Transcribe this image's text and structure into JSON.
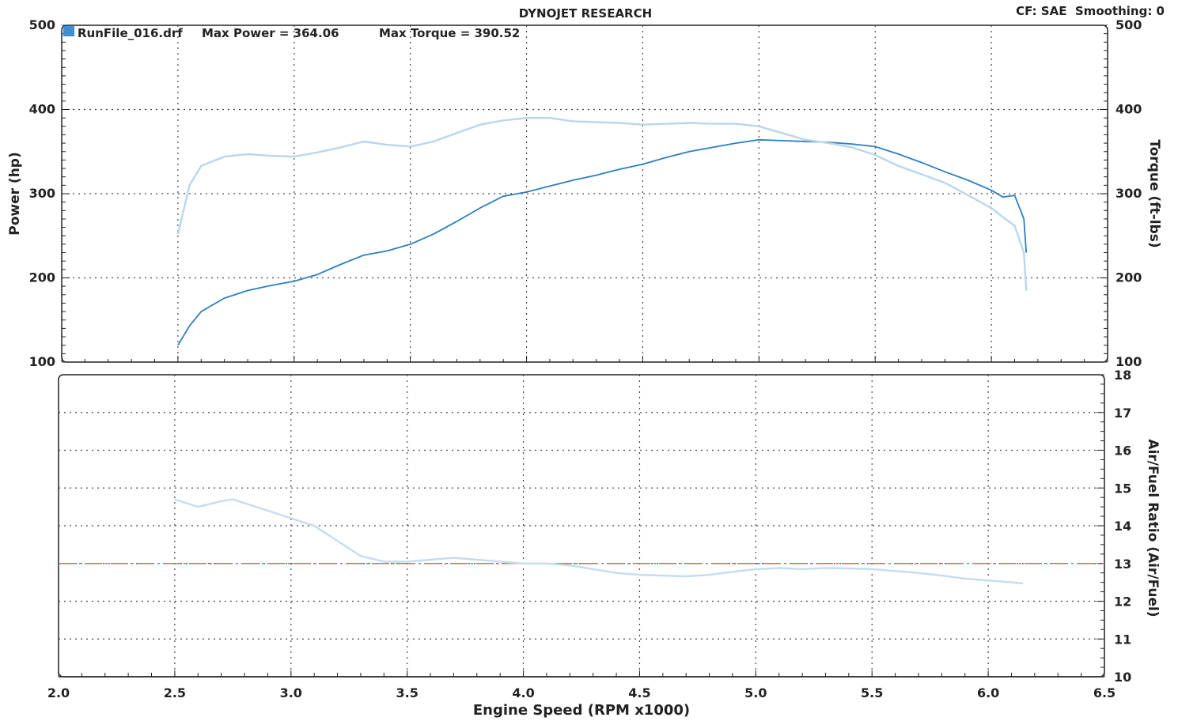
{
  "header": {
    "title": "DYNOJET RESEARCH",
    "cf_info": "CF: SAE  Smoothing: 0"
  },
  "colors": {
    "power": "#2e7fc0",
    "torque": "#b9d6ee",
    "afr": "#c4dcf0",
    "afr_target": "#e06060",
    "legend_box": "#3b8fd6",
    "grid": "#444444",
    "frame": "#222222"
  },
  "chart_data": [
    {
      "type": "line",
      "panel": "power-torque",
      "legend": {
        "file": "RunFile_016.drf",
        "max_power_label": "Max Power = 364.06",
        "max_torque_label": "Max Torque = 390.52"
      },
      "xlabel": "Engine Speed (RPM x1000)",
      "xlim": [
        2.0,
        6.5
      ],
      "xticks": [
        "2.0",
        "2.5",
        "3.0",
        "3.5",
        "4.0",
        "4.5",
        "5.0",
        "5.5",
        "6.0",
        "6.5"
      ],
      "ylabel": "Power (hp)",
      "ylim": [
        100,
        500
      ],
      "yticks": [
        "100",
        "200",
        "300",
        "400",
        "500"
      ],
      "y2label": "Torque (ft-lbs)",
      "y2lim": [
        100,
        500
      ],
      "y2ticks": [
        "100",
        "200",
        "300",
        "400",
        "500"
      ],
      "grid": true,
      "series": [
        {
          "name": "Power",
          "axis": "left",
          "x": [
            2.5,
            2.55,
            2.6,
            2.7,
            2.8,
            2.9,
            3.0,
            3.1,
            3.2,
            3.3,
            3.4,
            3.5,
            3.6,
            3.7,
            3.8,
            3.9,
            4.0,
            4.1,
            4.2,
            4.3,
            4.4,
            4.5,
            4.6,
            4.7,
            4.8,
            4.9,
            5.0,
            5.1,
            5.2,
            5.3,
            5.4,
            5.5,
            5.6,
            5.7,
            5.8,
            5.9,
            6.0,
            6.05,
            6.1,
            6.14,
            6.15
          ],
          "values": [
            120,
            143,
            160,
            176,
            185,
            191,
            196,
            204,
            216,
            227,
            232,
            240,
            252,
            267,
            283,
            297,
            302,
            309,
            316,
            322,
            329,
            335,
            343,
            350,
            355,
            360,
            364,
            363,
            362,
            361,
            359,
            356,
            347,
            337,
            326,
            316,
            304,
            296,
            298,
            270,
            230
          ]
        },
        {
          "name": "Torque",
          "axis": "right",
          "x": [
            2.5,
            2.55,
            2.6,
            2.7,
            2.8,
            2.9,
            3.0,
            3.1,
            3.2,
            3.3,
            3.4,
            3.5,
            3.6,
            3.7,
            3.8,
            3.9,
            4.0,
            4.1,
            4.2,
            4.3,
            4.4,
            4.5,
            4.6,
            4.7,
            4.8,
            4.9,
            5.0,
            5.1,
            5.2,
            5.3,
            5.4,
            5.5,
            5.6,
            5.7,
            5.8,
            5.9,
            6.0,
            6.05,
            6.1,
            6.14,
            6.15
          ],
          "values": [
            252,
            310,
            333,
            344,
            347,
            345,
            344,
            349,
            355,
            362,
            358,
            356,
            362,
            372,
            382,
            387,
            390,
            390,
            386,
            385,
            384,
            382,
            383,
            384,
            383,
            383,
            380,
            372,
            364,
            360,
            355,
            346,
            333,
            323,
            313,
            298,
            283,
            272,
            262,
            230,
            185
          ]
        }
      ]
    },
    {
      "type": "line",
      "panel": "air-fuel",
      "xlabel": "Engine Speed (RPM x1000)",
      "xlim": [
        2.0,
        6.5
      ],
      "xticks": [
        "2.0",
        "2.5",
        "3.0",
        "3.5",
        "4.0",
        "4.5",
        "5.0",
        "5.5",
        "6.0",
        "6.5"
      ],
      "y2label": "Air/Fuel Ratio (Air/Fuel)",
      "y2lim": [
        10,
        18
      ],
      "y2ticks": [
        "10",
        "11",
        "12",
        "13",
        "14",
        "15",
        "16",
        "17",
        "18"
      ],
      "grid": true,
      "target": 13.0,
      "series": [
        {
          "name": "Air/Fuel",
          "axis": "right",
          "x": [
            2.5,
            2.6,
            2.7,
            2.75,
            2.8,
            2.9,
            3.0,
            3.1,
            3.2,
            3.3,
            3.4,
            3.5,
            3.6,
            3.7,
            3.8,
            3.9,
            4.0,
            4.1,
            4.2,
            4.3,
            4.4,
            4.5,
            4.6,
            4.7,
            4.8,
            4.9,
            5.0,
            5.1,
            5.2,
            5.3,
            5.4,
            5.5,
            5.6,
            5.7,
            5.8,
            5.9,
            6.0,
            6.1,
            6.15
          ],
          "values": [
            14.7,
            14.5,
            14.65,
            14.7,
            14.6,
            14.4,
            14.2,
            14.0,
            13.6,
            13.2,
            13.05,
            13.05,
            13.1,
            13.15,
            13.1,
            13.05,
            13.0,
            13.0,
            12.95,
            12.85,
            12.75,
            12.7,
            12.68,
            12.66,
            12.7,
            12.78,
            12.85,
            12.88,
            12.85,
            12.88,
            12.87,
            12.85,
            12.8,
            12.75,
            12.68,
            12.6,
            12.55,
            12.5,
            12.47
          ]
        }
      ]
    }
  ]
}
